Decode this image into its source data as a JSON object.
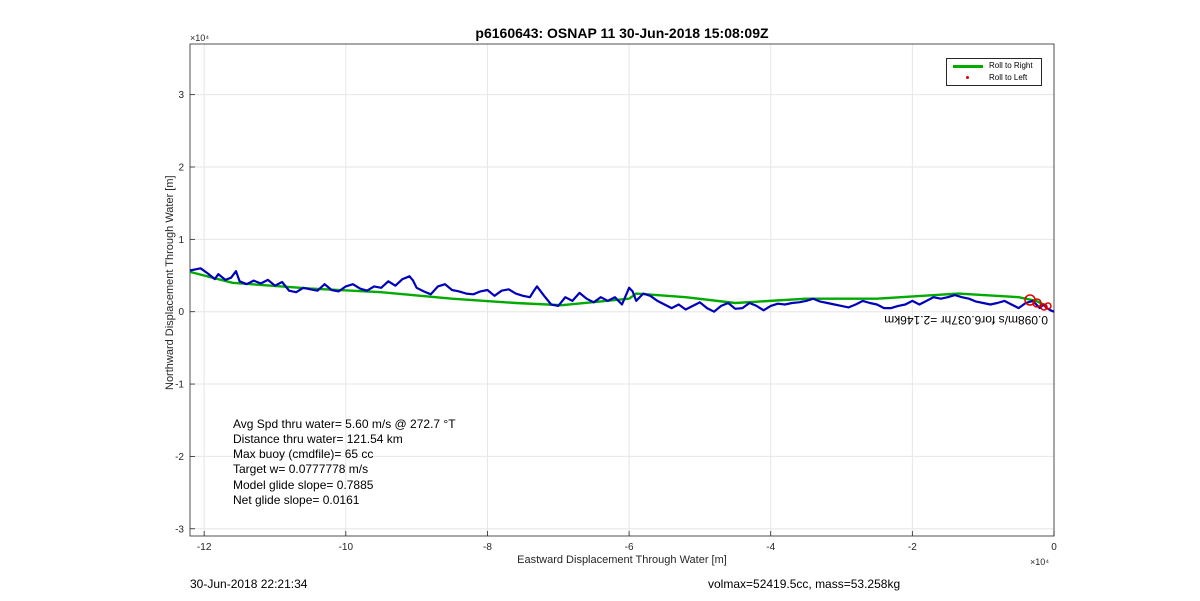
{
  "chart_data": {
    "type": "line",
    "title": "p6160643: OSNAP 11 30-Jun-2018 15:08:09Z",
    "xlabel": "Eastward Displacement Through Water [m]",
    "ylabel": "Northward Displacement Through Water [m]",
    "x_exponent": "×10⁴",
    "y_exponent": "×10⁴",
    "xlim": [
      -12.2,
      0
    ],
    "ylim": [
      -3.1,
      3.7
    ],
    "x_ticks": [
      -12,
      -10,
      -8,
      -6,
      -4,
      -2,
      0
    ],
    "y_ticks": [
      -3,
      -2,
      -1,
      0,
      1,
      2,
      3
    ],
    "grid": true,
    "legend_position": "top-right",
    "legend": [
      {
        "name": "Roll to Right",
        "color": "#00aa00",
        "style": "line"
      },
      {
        "name": "Roll to Left",
        "color": "#dd0000",
        "style": "marker"
      }
    ],
    "series": [
      {
        "name": "Roll to Right",
        "color": "#00aa00",
        "x": [
          -12.2,
          -11.6,
          -10.5,
          -9.5,
          -8.5,
          -7.6,
          -6.95,
          -6.0,
          -5.9,
          -5.2,
          -4.5,
          -3.5,
          -2.5,
          -1.35,
          -0.5,
          -0.25,
          -0.15
        ],
        "y": [
          0.55,
          0.4,
          0.32,
          0.27,
          0.18,
          0.12,
          0.09,
          0.18,
          0.25,
          0.2,
          0.12,
          0.18,
          0.18,
          0.25,
          0.2,
          0.15,
          0.1
        ]
      },
      {
        "name": "",
        "color": "#0000bb",
        "x": [
          -12.2,
          -12.05,
          -11.95,
          -11.85,
          -11.8,
          -11.7,
          -11.62,
          -11.55,
          -11.5,
          -11.4,
          -11.3,
          -11.2,
          -11.1,
          -11.0,
          -10.9,
          -10.8,
          -10.7,
          -10.6,
          -10.5,
          -10.4,
          -10.3,
          -10.2,
          -10.1,
          -10.0,
          -9.9,
          -9.8,
          -9.7,
          -9.6,
          -9.5,
          -9.4,
          -9.3,
          -9.2,
          -9.1,
          -9.05,
          -9.0,
          -8.9,
          -8.8,
          -8.7,
          -8.6,
          -8.5,
          -8.4,
          -8.3,
          -8.2,
          -8.1,
          -8.0,
          -7.9,
          -7.8,
          -7.7,
          -7.6,
          -7.5,
          -7.4,
          -7.35,
          -7.3,
          -7.2,
          -7.1,
          -7.0,
          -6.9,
          -6.8,
          -6.7,
          -6.6,
          -6.5,
          -6.4,
          -6.3,
          -6.2,
          -6.1,
          -6.0,
          -5.95,
          -5.9,
          -5.85,
          -5.8,
          -5.7,
          -5.6,
          -5.5,
          -5.4,
          -5.3,
          -5.2,
          -5.1,
          -5.0,
          -4.9,
          -4.8,
          -4.7,
          -4.6,
          -4.5,
          -4.4,
          -4.3,
          -4.2,
          -4.1,
          -4.0,
          -3.9,
          -3.8,
          -3.7,
          -3.6,
          -3.5,
          -3.4,
          -3.3,
          -3.2,
          -3.1,
          -3.0,
          -2.9,
          -2.8,
          -2.7,
          -2.6,
          -2.5,
          -2.4,
          -2.3,
          -2.2,
          -2.1,
          -2.0,
          -1.9,
          -1.8,
          -1.7,
          -1.6,
          -1.5,
          -1.4,
          -1.3,
          -1.2,
          -1.1,
          -1.0,
          -0.9,
          -0.8,
          -0.7,
          -0.6,
          -0.5,
          -0.4,
          -0.3,
          -0.25,
          -0.2,
          -0.15,
          -0.1,
          -0.05,
          0.0
        ],
        "y": [
          0.57,
          0.6,
          0.53,
          0.45,
          0.52,
          0.44,
          0.47,
          0.56,
          0.42,
          0.38,
          0.43,
          0.39,
          0.44,
          0.36,
          0.41,
          0.29,
          0.27,
          0.33,
          0.31,
          0.29,
          0.38,
          0.3,
          0.28,
          0.35,
          0.38,
          0.32,
          0.29,
          0.35,
          0.33,
          0.42,
          0.36,
          0.45,
          0.49,
          0.43,
          0.33,
          0.28,
          0.24,
          0.35,
          0.38,
          0.3,
          0.28,
          0.25,
          0.24,
          0.28,
          0.3,
          0.22,
          0.29,
          0.31,
          0.25,
          0.22,
          0.2,
          0.28,
          0.35,
          0.22,
          0.1,
          0.08,
          0.2,
          0.15,
          0.26,
          0.18,
          0.13,
          0.2,
          0.15,
          0.2,
          0.1,
          0.33,
          0.28,
          0.15,
          0.2,
          0.25,
          0.22,
          0.15,
          0.1,
          0.05,
          0.1,
          0.03,
          0.08,
          0.13,
          0.05,
          0.0,
          0.08,
          0.12,
          0.04,
          0.05,
          0.12,
          0.08,
          0.02,
          0.08,
          0.11,
          0.1,
          0.12,
          0.13,
          0.15,
          0.18,
          0.14,
          0.12,
          0.1,
          0.08,
          0.06,
          0.1,
          0.15,
          0.12,
          0.1,
          0.05,
          0.05,
          0.08,
          0.1,
          0.15,
          0.1,
          0.15,
          0.2,
          0.18,
          0.2,
          0.23,
          0.2,
          0.18,
          0.14,
          0.12,
          0.1,
          0.12,
          0.15,
          0.1,
          0.05,
          0.12,
          0.15,
          0.1,
          0.05,
          0.1,
          0.05,
          0.02,
          0.0
        ]
      }
    ],
    "annotations": [
      {
        "text": "Avg Spd thru water=  5.60 m/s @ 272.7 °T"
      },
      {
        "text": "Distance thru water= 121.54 km"
      },
      {
        "text": "Max buoy (cmdfile)= 65 cc"
      },
      {
        "text": "Target w= 0.0777778 m/s"
      },
      {
        "text": "Model glide slope= 0.7885"
      },
      {
        "text": "Net glide slope= 0.0161"
      }
    ],
    "flipped_annotation": "0.098m/s for6.037hr =2.146km"
  },
  "footer": {
    "timestamp": "30-Jun-2018 22:21:34",
    "volume": "volmax=52419.5cc, mass=53.258kg"
  }
}
